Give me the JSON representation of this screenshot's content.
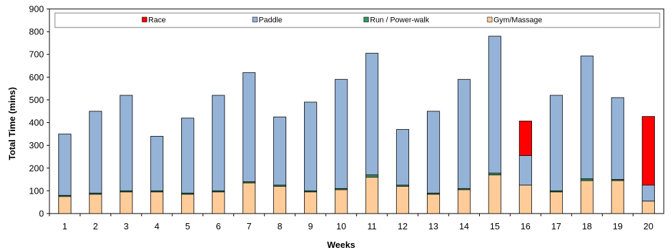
{
  "chart_data": {
    "type": "bar",
    "stacked": true,
    "xlabel": "Weeks",
    "ylabel": "Total Time (mins)",
    "ylim": [
      0,
      900
    ],
    "yticks": [
      0,
      100,
      200,
      300,
      400,
      500,
      600,
      700,
      800,
      900
    ],
    "grid": false,
    "legend_position": "top",
    "categories": [
      "1",
      "2",
      "3",
      "4",
      "5",
      "6",
      "7",
      "8",
      "9",
      "10",
      "11",
      "12",
      "13",
      "14",
      "15",
      "16",
      "17",
      "18",
      "19",
      "20"
    ],
    "series": [
      {
        "name": "Gym/Massage",
        "color": "#FFCC99",
        "values": [
          75,
          85,
          95,
          95,
          85,
          95,
          135,
          120,
          95,
          105,
          160,
          120,
          85,
          105,
          170,
          125,
          95,
          145,
          145,
          55
        ]
      },
      {
        "name": "Run / Power-walk",
        "color": "#339966",
        "values": [
          5,
          5,
          5,
          5,
          5,
          5,
          5,
          5,
          5,
          5,
          10,
          5,
          5,
          5,
          8,
          0,
          5,
          8,
          5,
          0
        ]
      },
      {
        "name": "Paddle",
        "color": "#95B3D7",
        "values": [
          270,
          360,
          420,
          240,
          330,
          420,
          480,
          300,
          390,
          480,
          535,
          245,
          360,
          480,
          602,
          130,
          420,
          540,
          360,
          70
        ]
      },
      {
        "name": "Race",
        "color": "#FF0000",
        "values": [
          0,
          0,
          0,
          0,
          0,
          0,
          0,
          0,
          0,
          0,
          0,
          0,
          0,
          0,
          0,
          152,
          0,
          0,
          0,
          302
        ]
      }
    ],
    "legend_order": [
      "Race",
      "Paddle",
      "Run / Power-walk",
      "Gym/Massage"
    ]
  }
}
